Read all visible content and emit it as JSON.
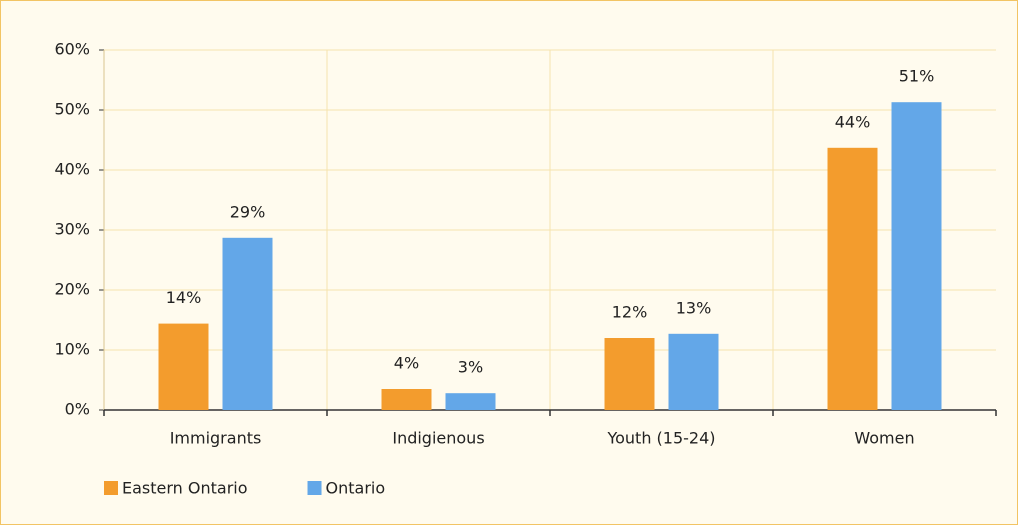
{
  "chart_data": {
    "type": "bar",
    "categories": [
      "Immigrants",
      "Indigienous",
      "Youth (15-24)",
      "Women"
    ],
    "series": [
      {
        "name": "Eastern Ontario",
        "color": "#f39c2d",
        "values": [
          14.4,
          3.5,
          12,
          43.7
        ],
        "value_labels": [
          "14%",
          "4%",
          "12%",
          "44%"
        ]
      },
      {
        "name": "Ontario",
        "color": "#63a7e8",
        "values": [
          28.7,
          2.8,
          12.7,
          51.3
        ],
        "value_labels": [
          "29%",
          "3%",
          "13%",
          "51%"
        ]
      }
    ],
    "ylim": [
      0,
      60
    ],
    "yticks": [
      {
        "value": 0,
        "label": "0%"
      },
      {
        "value": 10,
        "label": "10%"
      },
      {
        "value": 20,
        "label": "20%"
      },
      {
        "value": 30,
        "label": "30%"
      },
      {
        "value": 40,
        "label": "40%"
      },
      {
        "value": 50,
        "label": "50%"
      },
      {
        "value": 60,
        "label": "60%"
      }
    ],
    "grid": true,
    "legend": "bottom"
  }
}
